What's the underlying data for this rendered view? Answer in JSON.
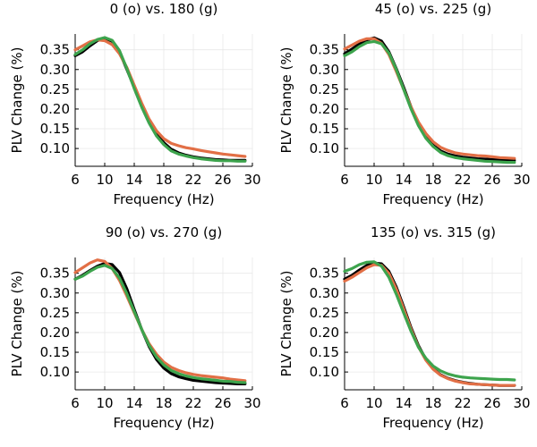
{
  "figure": {
    "panel_titles": [
      "0 (o) vs. 180 (g)",
      "45 (o) vs. 225 (g)",
      "90 (o) vs. 270 (g)",
      "135 (o) vs. 315 (g)"
    ]
  },
  "colors": {
    "black": "#000000",
    "orange": "#e26f46",
    "green": "#3da44d"
  },
  "chart_data": [
    {
      "type": "line",
      "title": "0 (o) vs. 180 (g)",
      "xlabel": "Frequency (Hz)",
      "ylabel": "PLV Change (%)",
      "xlim": [
        6,
        30
      ],
      "ylim": [
        0.055,
        0.39
      ],
      "xticks": [
        6,
        10,
        14,
        18,
        22,
        26,
        30
      ],
      "xtick_labels": [
        "6",
        "10",
        "14",
        "18",
        "22",
        "26",
        "30"
      ],
      "yticks": [
        0.1,
        0.15,
        0.2,
        0.25,
        0.3,
        0.35
      ],
      "ytick_labels": [
        "0.10",
        "0.15",
        "0.20",
        "0.25",
        "0.30",
        "0.35"
      ],
      "grid": true,
      "legend": "none",
      "x": [
        6,
        7,
        8,
        9,
        10,
        11,
        12,
        13,
        14,
        15,
        16,
        17,
        18,
        19,
        20,
        21,
        22,
        23,
        24,
        25,
        26,
        27,
        28,
        29
      ],
      "series": [
        {
          "color": "#000000",
          "values": [
            0.335,
            0.345,
            0.36,
            0.373,
            0.379,
            0.372,
            0.345,
            0.3,
            0.255,
            0.21,
            0.17,
            0.138,
            0.115,
            0.098,
            0.089,
            0.083,
            0.079,
            0.076,
            0.074,
            0.072,
            0.071,
            0.07,
            0.07,
            0.07
          ]
        },
        {
          "color": "#e26f46",
          "values": [
            0.35,
            0.36,
            0.37,
            0.375,
            0.373,
            0.363,
            0.34,
            0.305,
            0.26,
            0.215,
            0.175,
            0.145,
            0.125,
            0.113,
            0.107,
            0.102,
            0.099,
            0.095,
            0.092,
            0.089,
            0.086,
            0.084,
            0.082,
            0.08
          ]
        },
        {
          "color": "#3da44d",
          "values": [
            0.338,
            0.35,
            0.365,
            0.376,
            0.381,
            0.374,
            0.348,
            0.302,
            0.252,
            0.205,
            0.165,
            0.132,
            0.11,
            0.094,
            0.086,
            0.081,
            0.077,
            0.074,
            0.072,
            0.07,
            0.069,
            0.069,
            0.068,
            0.068
          ]
        }
      ]
    },
    {
      "type": "line",
      "title": "45 (o) vs. 225 (g)",
      "xlabel": "Frequency (Hz)",
      "ylabel": "PLV Change (%)",
      "xlim": [
        6,
        30
      ],
      "ylim": [
        0.055,
        0.39
      ],
      "xticks": [
        6,
        10,
        14,
        18,
        22,
        26,
        30
      ],
      "xtick_labels": [
        "6",
        "10",
        "14",
        "18",
        "22",
        "26",
        "30"
      ],
      "yticks": [
        0.1,
        0.15,
        0.2,
        0.25,
        0.3,
        0.35
      ],
      "ytick_labels": [
        "0.10",
        "0.15",
        "0.20",
        "0.25",
        "0.30",
        "0.35"
      ],
      "grid": true,
      "legend": "none",
      "x": [
        6,
        7,
        8,
        9,
        10,
        11,
        12,
        13,
        14,
        15,
        16,
        17,
        18,
        19,
        20,
        21,
        22,
        23,
        24,
        25,
        26,
        27,
        28,
        29
      ],
      "series": [
        {
          "color": "#000000",
          "values": [
            0.34,
            0.352,
            0.365,
            0.375,
            0.38,
            0.372,
            0.345,
            0.302,
            0.255,
            0.205,
            0.162,
            0.13,
            0.108,
            0.094,
            0.086,
            0.081,
            0.078,
            0.076,
            0.074,
            0.073,
            0.072,
            0.071,
            0.07,
            0.07
          ]
        },
        {
          "color": "#e26f46",
          "values": [
            0.352,
            0.362,
            0.372,
            0.378,
            0.378,
            0.366,
            0.338,
            0.295,
            0.25,
            0.205,
            0.167,
            0.138,
            0.117,
            0.103,
            0.095,
            0.089,
            0.086,
            0.084,
            0.082,
            0.081,
            0.079,
            0.077,
            0.076,
            0.075
          ]
        },
        {
          "color": "#3da44d",
          "values": [
            0.335,
            0.345,
            0.358,
            0.368,
            0.371,
            0.365,
            0.342,
            0.3,
            0.25,
            0.2,
            0.158,
            0.126,
            0.105,
            0.09,
            0.082,
            0.077,
            0.074,
            0.072,
            0.07,
            0.068,
            0.067,
            0.066,
            0.065,
            0.065
          ]
        }
      ]
    },
    {
      "type": "line",
      "title": "90 (o) vs. 270 (g)",
      "xlabel": "Frequency (Hz)",
      "ylabel": "PLV Change (%)",
      "xlim": [
        6,
        30
      ],
      "ylim": [
        0.055,
        0.39
      ],
      "xticks": [
        6,
        10,
        14,
        18,
        22,
        26,
        30
      ],
      "xtick_labels": [
        "6",
        "10",
        "14",
        "18",
        "22",
        "26",
        "30"
      ],
      "yticks": [
        0.1,
        0.15,
        0.2,
        0.25,
        0.3,
        0.35
      ],
      "ytick_labels": [
        "0.10",
        "0.15",
        "0.20",
        "0.25",
        "0.30",
        "0.35"
      ],
      "grid": true,
      "legend": "none",
      "x": [
        6,
        7,
        8,
        9,
        10,
        11,
        12,
        13,
        14,
        15,
        16,
        17,
        18,
        19,
        20,
        21,
        22,
        23,
        24,
        25,
        26,
        27,
        28,
        29
      ],
      "series": [
        {
          "color": "#000000",
          "values": [
            0.335,
            0.345,
            0.357,
            0.368,
            0.375,
            0.372,
            0.352,
            0.31,
            0.258,
            0.208,
            0.165,
            0.132,
            0.11,
            0.096,
            0.088,
            0.083,
            0.079,
            0.077,
            0.075,
            0.073,
            0.072,
            0.071,
            0.07,
            0.07
          ]
        },
        {
          "color": "#e26f46",
          "values": [
            0.352,
            0.364,
            0.376,
            0.384,
            0.38,
            0.362,
            0.332,
            0.292,
            0.25,
            0.208,
            0.172,
            0.145,
            0.125,
            0.112,
            0.104,
            0.098,
            0.094,
            0.091,
            0.089,
            0.087,
            0.085,
            0.082,
            0.08,
            0.078
          ]
        },
        {
          "color": "#3da44d",
          "values": [
            0.335,
            0.343,
            0.355,
            0.365,
            0.37,
            0.362,
            0.338,
            0.298,
            0.253,
            0.208,
            0.168,
            0.138,
            0.118,
            0.104,
            0.096,
            0.09,
            0.086,
            0.083,
            0.081,
            0.079,
            0.077,
            0.076,
            0.074,
            0.073
          ]
        }
      ]
    },
    {
      "type": "line",
      "title": "135 (o) vs. 315 (g)",
      "xlabel": "Frequency (Hz)",
      "ylabel": "PLV Change (%)",
      "xlim": [
        6,
        30
      ],
      "ylim": [
        0.055,
        0.39
      ],
      "xticks": [
        6,
        10,
        14,
        18,
        22,
        26,
        30
      ],
      "xtick_labels": [
        "6",
        "10",
        "14",
        "18",
        "22",
        "26",
        "30"
      ],
      "yticks": [
        0.1,
        0.15,
        0.2,
        0.25,
        0.3,
        0.35
      ],
      "ytick_labels": [
        "0.10",
        "0.15",
        "0.20",
        "0.25",
        "0.30",
        "0.35"
      ],
      "grid": true,
      "legend": "none",
      "x": [
        6,
        7,
        8,
        9,
        10,
        11,
        12,
        13,
        14,
        15,
        16,
        17,
        18,
        19,
        20,
        21,
        22,
        23,
        24,
        25,
        26,
        27,
        28,
        29
      ],
      "series": [
        {
          "color": "#000000",
          "values": [
            0.335,
            0.345,
            0.358,
            0.37,
            0.376,
            0.374,
            0.355,
            0.315,
            0.265,
            0.212,
            0.167,
            0.132,
            0.108,
            0.093,
            0.084,
            0.078,
            0.074,
            0.071,
            0.069,
            0.068,
            0.067,
            0.066,
            0.066,
            0.066
          ]
        },
        {
          "color": "#e26f46",
          "values": [
            0.33,
            0.34,
            0.352,
            0.364,
            0.372,
            0.37,
            0.35,
            0.31,
            0.26,
            0.208,
            0.164,
            0.13,
            0.107,
            0.092,
            0.083,
            0.077,
            0.073,
            0.07,
            0.069,
            0.068,
            0.067,
            0.066,
            0.066,
            0.066
          ]
        },
        {
          "color": "#3da44d",
          "values": [
            0.355,
            0.362,
            0.372,
            0.378,
            0.379,
            0.368,
            0.34,
            0.297,
            0.25,
            0.203,
            0.163,
            0.135,
            0.115,
            0.103,
            0.095,
            0.09,
            0.087,
            0.085,
            0.084,
            0.083,
            0.082,
            0.081,
            0.081,
            0.08
          ]
        }
      ]
    }
  ]
}
